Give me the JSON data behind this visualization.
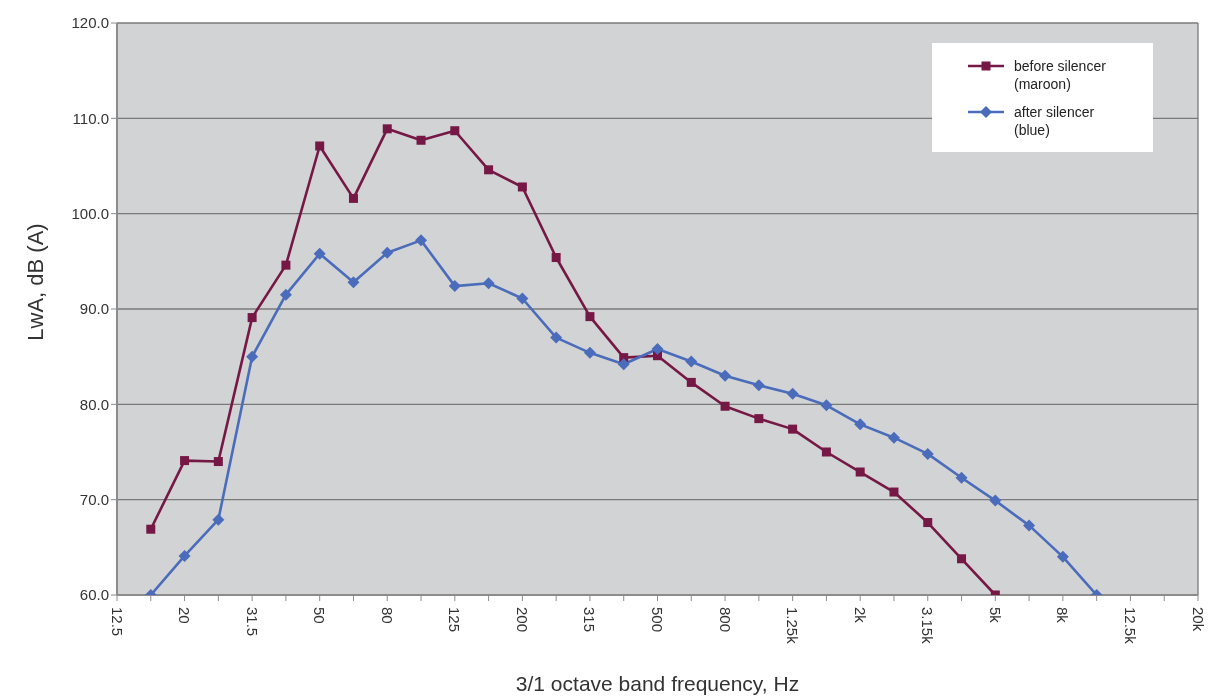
{
  "chart_data": {
    "type": "line",
    "xlabel": "3/1 octave band frequency, Hz",
    "ylabel": "LwA, dB (A)",
    "categories": [
      "12.5",
      null,
      "20",
      null,
      "31.5",
      null,
      "50",
      null,
      "80",
      null,
      "125",
      null,
      "200",
      null,
      "315",
      null,
      "500",
      null,
      "800",
      null,
      "1.25k",
      null,
      "2k",
      null,
      "3.15k",
      null,
      "5k",
      null,
      "8k",
      null,
      "12.5k",
      null,
      "20k"
    ],
    "series": [
      {
        "name": "before silencer (maroon)",
        "color": "#761846",
        "marker": "square",
        "values": [
          null,
          66.9,
          74.1,
          74.0,
          89.1,
          94.6,
          107.1,
          101.6,
          108.9,
          107.7,
          108.7,
          104.6,
          102.8,
          95.4,
          89.2,
          84.9,
          85.1,
          82.3,
          79.8,
          78.5,
          77.4,
          75.0,
          72.9,
          70.8,
          67.6,
          63.8,
          60,
          null,
          null,
          null,
          null,
          null,
          null
        ]
      },
      {
        "name": "after silencer (blue)",
        "color": "#4a6cba",
        "marker": "diamond",
        "values": [
          null,
          60,
          64.1,
          67.9,
          85.0,
          91.5,
          95.8,
          92.8,
          95.9,
          97.2,
          92.4,
          92.7,
          91.1,
          87.0,
          85.4,
          84.2,
          85.8,
          84.5,
          83.0,
          82.0,
          81.1,
          79.9,
          77.9,
          76.5,
          74.8,
          72.3,
          69.9,
          67.3,
          64.0,
          60,
          null,
          null,
          null
        ]
      }
    ],
    "ylim": [
      60,
      120
    ],
    "yticks": [
      {
        "value": 60,
        "label": "60.0"
      },
      {
        "value": 70,
        "label": "70.0"
      },
      {
        "value": 80,
        "label": "80.0"
      },
      {
        "value": 90,
        "label": "90.0"
      },
      {
        "value": 100,
        "label": "100.0"
      },
      {
        "value": 110,
        "label": "110.0"
      },
      {
        "value": 120,
        "label": "120.0"
      }
    ],
    "grid": "y",
    "legend": "top right"
  }
}
